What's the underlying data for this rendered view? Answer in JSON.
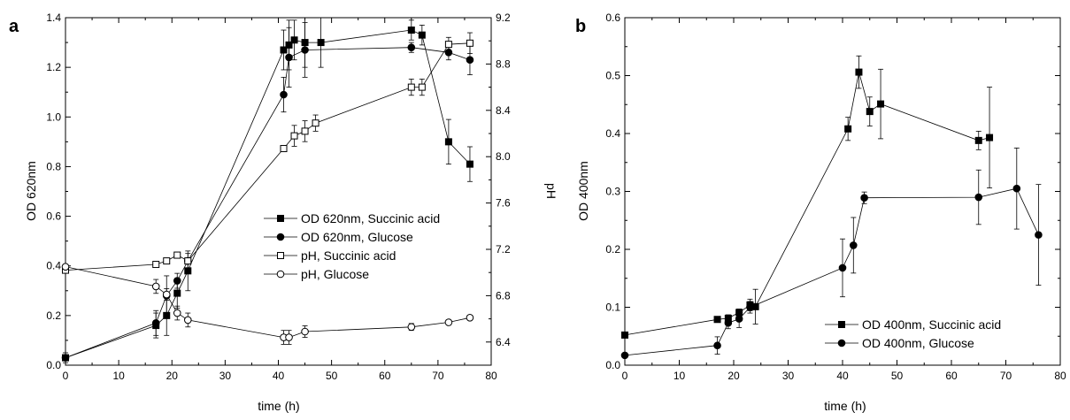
{
  "chart_data": [
    {
      "type": "line",
      "panel_label": "a",
      "xlabel": "time (h)",
      "ylabel": "OD 620nm",
      "y2label": "pH",
      "xlim": [
        0,
        80
      ],
      "ylim": [
        0.0,
        1.4
      ],
      "y2lim": [
        6.2,
        9.2
      ],
      "x_ticks": [
        "0",
        "10",
        "20",
        "30",
        "40",
        "50",
        "60",
        "70",
        "80"
      ],
      "y_ticks": [
        "0.0",
        "0.2",
        "0.4",
        "0.6",
        "0.8",
        "1.0",
        "1.2",
        "1.4"
      ],
      "y2_ticks": [
        "6.4",
        "6.8",
        "7.2",
        "7.6",
        "8.0",
        "8.4",
        "8.8",
        "9.2"
      ],
      "grid": false,
      "legend_position": "center-right",
      "series": [
        {
          "name": "OD 620nm, Succinic acid",
          "axis": "left",
          "marker": "square",
          "filled": true,
          "x": [
            0,
            17,
            19,
            21,
            23,
            41,
            42,
            43,
            45,
            48,
            65,
            67,
            72,
            76
          ],
          "y": [
            0.03,
            0.16,
            0.2,
            0.29,
            0.38,
            1.27,
            1.29,
            1.31,
            1.3,
            1.3,
            1.35,
            1.33,
            0.9,
            0.81
          ],
          "err": [
            0.02,
            0.05,
            0.08,
            0.06,
            0.08,
            0.08,
            0.1,
            0.08,
            0.1,
            0.1,
            0.04,
            0.04,
            0.09,
            0.07
          ]
        },
        {
          "name": "OD 620nm, Glucose",
          "axis": "left",
          "marker": "circle",
          "filled": true,
          "x": [
            0,
            17,
            19,
            21,
            23,
            41,
            42,
            45,
            65,
            72,
            76
          ],
          "y": [
            0.03,
            0.17,
            0.28,
            0.34,
            0.42,
            1.09,
            1.24,
            1.27,
            1.28,
            1.26,
            1.23
          ],
          "err": [
            0.01,
            0.05,
            0.08,
            0.03,
            0.03,
            0.07,
            0.12,
            0.11,
            0.02,
            0.03,
            0.06
          ]
        },
        {
          "name": "pH, Succinic acid",
          "axis": "right",
          "marker": "square",
          "filled": false,
          "x": [
            0,
            17,
            19,
            21,
            23,
            41,
            43,
            45,
            47,
            65,
            67,
            72,
            76
          ],
          "y": [
            7.02,
            7.07,
            7.1,
            7.15,
            7.1,
            8.07,
            8.18,
            8.22,
            8.29,
            8.6,
            8.6,
            8.97,
            8.98
          ],
          "err": [
            0.02,
            0.02,
            0.02,
            0.02,
            0.02,
            0.02,
            0.09,
            0.09,
            0.07,
            0.07,
            0.07,
            0.06,
            0.09
          ]
        },
        {
          "name": "pH, Glucose",
          "axis": "right",
          "marker": "circle",
          "filled": false,
          "x": [
            0,
            17,
            19,
            21,
            23,
            41,
            42,
            45,
            65,
            72,
            76
          ],
          "y": [
            7.05,
            6.88,
            6.81,
            6.65,
            6.59,
            6.44,
            6.44,
            6.49,
            6.53,
            6.57,
            6.61
          ],
          "err": [
            0.02,
            0.06,
            0.05,
            0.06,
            0.06,
            0.06,
            0.06,
            0.05,
            0.03,
            0.02,
            0.01
          ]
        }
      ]
    },
    {
      "type": "line",
      "panel_label": "b",
      "xlabel": "time (h)",
      "ylabel": "OD 400nm",
      "xlim": [
        0,
        80
      ],
      "ylim": [
        0.0,
        0.6
      ],
      "x_ticks": [
        "0",
        "10",
        "20",
        "30",
        "40",
        "50",
        "60",
        "70",
        "80"
      ],
      "y_ticks": [
        "0.0",
        "0.1",
        "0.2",
        "0.3",
        "0.4",
        "0.5",
        "0.6"
      ],
      "grid": false,
      "legend_position": "bottom-right",
      "series": [
        {
          "name": "OD 400nm, Succinic acid",
          "marker": "square",
          "filled": true,
          "x": [
            0,
            17,
            19,
            21,
            23,
            24,
            41,
            43,
            45,
            47,
            65,
            67
          ],
          "y": [
            0.052,
            0.079,
            0.081,
            0.091,
            0.104,
            0.101,
            0.408,
            0.506,
            0.438,
            0.451,
            0.388,
            0.393
          ],
          "err": [
            0.005,
            0.005,
            0.006,
            0.006,
            0.01,
            0.03,
            0.02,
            0.028,
            0.025,
            0.06,
            0.016,
            0.087
          ]
        },
        {
          "name": "OD 400nm, Glucose",
          "marker": "circle",
          "filled": true,
          "x": [
            0,
            17,
            19,
            21,
            23,
            40,
            42,
            44,
            65,
            72,
            76
          ],
          "y": [
            0.017,
            0.034,
            0.073,
            0.08,
            0.1,
            0.168,
            0.207,
            0.289,
            0.29,
            0.305,
            0.225
          ],
          "err": [
            0.004,
            0.015,
            0.01,
            0.015,
            0.01,
            0.05,
            0.048,
            0.01,
            0.047,
            0.07,
            0.087
          ]
        }
      ]
    }
  ]
}
